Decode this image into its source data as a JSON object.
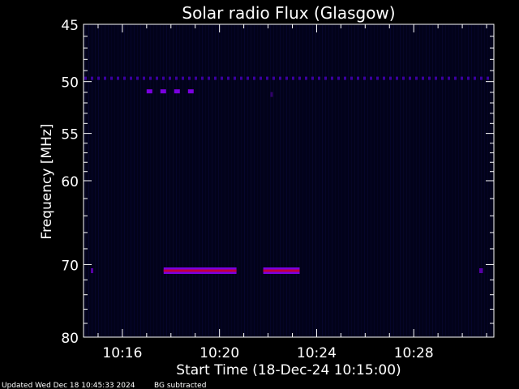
{
  "chart_data": {
    "type": "heatmap",
    "title": "Solar radio Flux (Glasgow)",
    "xlabel": "Start Time (18-Dec-24 10:15:00)",
    "ylabel": "Frequency [MHz]",
    "x_unit": "minutes after 10:15:00",
    "xlim": [
      -0.6,
      16.3
    ],
    "ylim": [
      45,
      80
    ],
    "y_scale": "log",
    "y_ticks": [
      45,
      50,
      55,
      60,
      70,
      80
    ],
    "y_tick_labels": [
      "45",
      "50",
      "55",
      "60",
      "70",
      "80"
    ],
    "x_ticks": [
      1,
      5,
      9,
      13
    ],
    "x_tick_labels": [
      "10:16",
      "10:20",
      "10:24",
      "10:28"
    ],
    "grid": false,
    "colors": {
      "background": "#000000",
      "faint": "#0a0a3c",
      "medium": "#3a00a0",
      "bright": "#7a00e0",
      "core": "#c0003a"
    },
    "features": [
      {
        "kind": "band",
        "freq_mhz": 49.7,
        "t_start": -0.6,
        "t_end": 16.3,
        "intensity": 0.35,
        "dashed": true
      },
      {
        "kind": "band",
        "freq_mhz": 50.9,
        "t_start": 2.0,
        "t_end": 4.1,
        "intensity": 0.6,
        "dashed": true
      },
      {
        "kind": "band",
        "freq_mhz": 70.8,
        "t_start": 2.7,
        "t_end": 5.7,
        "intensity": 1.0,
        "dashed": false
      },
      {
        "kind": "band",
        "freq_mhz": 70.8,
        "t_start": 6.8,
        "t_end": 8.3,
        "intensity": 1.0,
        "dashed": false
      },
      {
        "kind": "spot",
        "freq_mhz": 70.8,
        "t_start": -0.3,
        "t_end": -0.2,
        "intensity": 0.7
      },
      {
        "kind": "spot",
        "freq_mhz": 70.8,
        "t_start": 15.7,
        "t_end": 15.85,
        "intensity": 0.7
      },
      {
        "kind": "spot",
        "freq_mhz": 51.2,
        "t_start": 7.1,
        "t_end": 7.2,
        "intensity": 0.4
      }
    ]
  },
  "footer": {
    "updated": "Updated Wed Dec 18 10:45:33 2024",
    "note": "BG subtracted"
  }
}
